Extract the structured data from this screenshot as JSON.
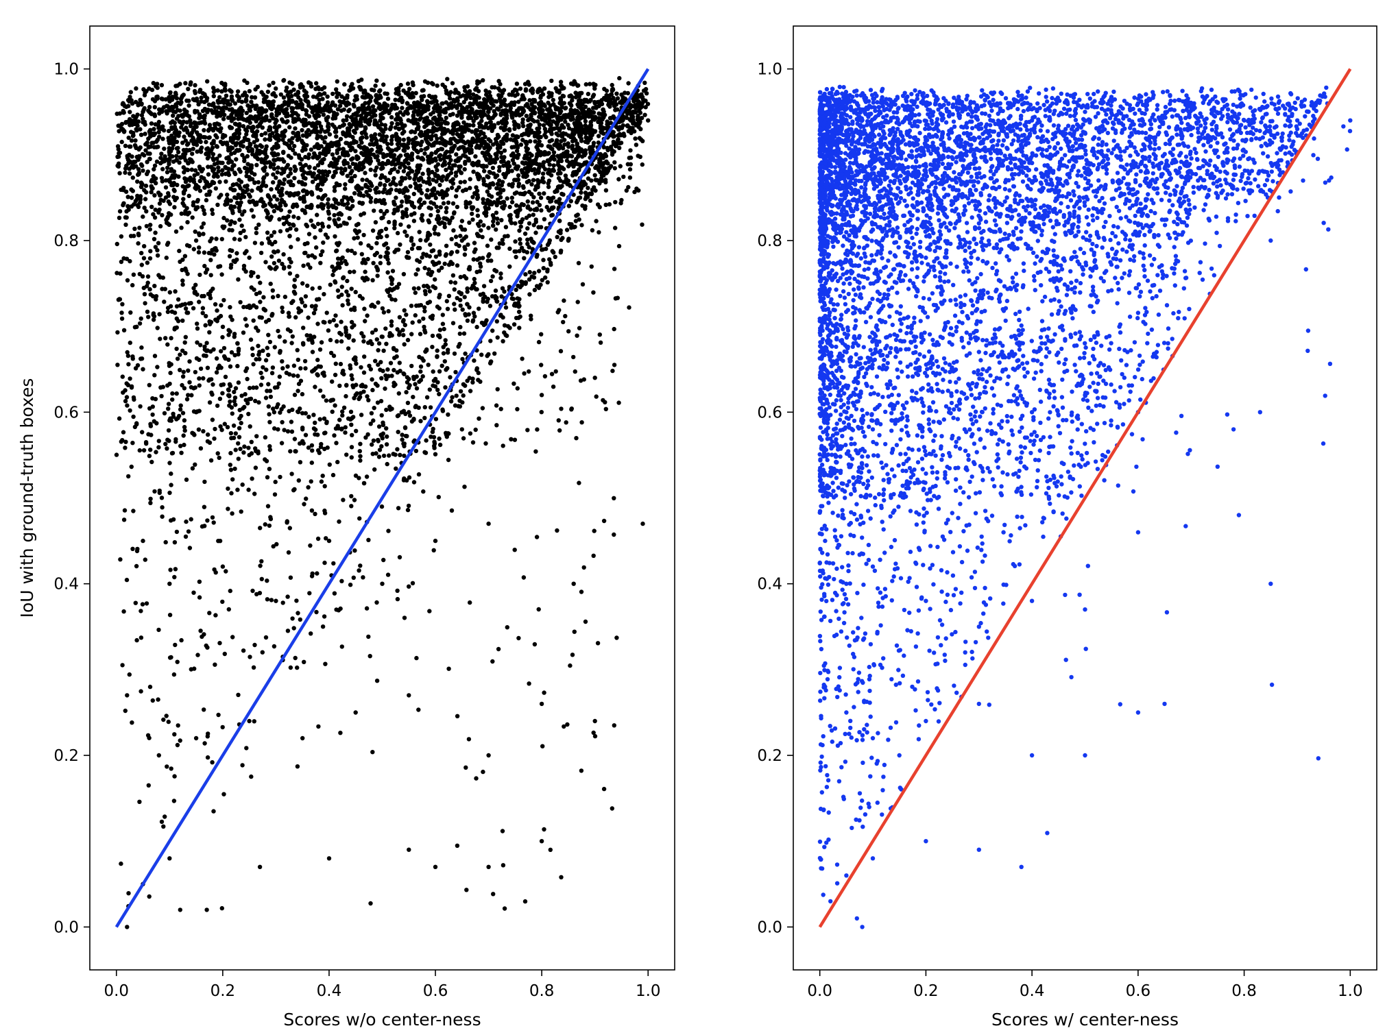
{
  "chart_data": [
    {
      "type": "scatter",
      "title": "",
      "xlabel": "Scores w/o center-ness",
      "ylabel": "IoU with ground-truth boxes",
      "xlim": [
        -0.05,
        1.05
      ],
      "ylim": [
        -0.05,
        1.05
      ],
      "x_ticks": [
        "0.0",
        "0.2",
        "0.4",
        "0.6",
        "0.8",
        "1.0"
      ],
      "y_ticks": [
        "0.0",
        "0.2",
        "0.4",
        "0.6",
        "0.8",
        "1.0"
      ],
      "grid": false,
      "point_color": "#000000",
      "approx_point_count": 6500,
      "reference_line": {
        "x": [
          0,
          1
        ],
        "y": [
          0,
          1
        ],
        "color": "#1a3ee8"
      },
      "sample_points": [
        [
          0.05,
          0.95
        ],
        [
          0.1,
          0.9
        ],
        [
          0.2,
          0.92
        ],
        [
          0.3,
          0.9
        ],
        [
          0.4,
          0.88
        ],
        [
          0.5,
          0.92
        ],
        [
          0.6,
          0.93
        ],
        [
          0.7,
          0.95
        ],
        [
          0.8,
          0.95
        ],
        [
          0.9,
          0.96
        ],
        [
          0.95,
          0.97
        ],
        [
          1.0,
          0.94
        ],
        [
          0.15,
          0.8
        ],
        [
          0.25,
          0.78
        ],
        [
          0.35,
          0.75
        ],
        [
          0.45,
          0.74
        ],
        [
          0.55,
          0.78
        ],
        [
          0.65,
          0.8
        ],
        [
          0.75,
          0.82
        ],
        [
          0.85,
          0.8
        ],
        [
          0.05,
          0.65
        ],
        [
          0.15,
          0.6
        ],
        [
          0.25,
          0.55
        ],
        [
          0.35,
          0.58
        ],
        [
          0.45,
          0.62
        ],
        [
          0.55,
          0.6
        ],
        [
          0.65,
          0.58
        ],
        [
          0.8,
          0.62
        ],
        [
          0.9,
          0.64
        ],
        [
          0.05,
          0.45
        ],
        [
          0.1,
          0.4
        ],
        [
          0.2,
          0.42
        ],
        [
          0.3,
          0.38
        ],
        [
          0.4,
          0.45
        ],
        [
          0.5,
          0.4
        ],
        [
          0.6,
          0.45
        ],
        [
          0.7,
          0.47
        ],
        [
          0.86,
          0.4
        ],
        [
          0.99,
          0.47
        ],
        [
          0.02,
          0.27
        ],
        [
          0.08,
          0.2
        ],
        [
          0.15,
          0.22
        ],
        [
          0.25,
          0.24
        ],
        [
          0.35,
          0.22
        ],
        [
          0.45,
          0.25
        ],
        [
          0.55,
          0.27
        ],
        [
          0.7,
          0.2
        ],
        [
          0.8,
          0.26
        ],
        [
          0.9,
          0.24
        ],
        [
          0.02,
          0.0
        ],
        [
          0.05,
          0.05
        ],
        [
          0.1,
          0.08
        ],
        [
          0.12,
          0.02
        ],
        [
          0.17,
          0.02
        ],
        [
          0.27,
          0.07
        ],
        [
          0.4,
          0.08
        ],
        [
          0.55,
          0.09
        ],
        [
          0.6,
          0.07
        ],
        [
          0.7,
          0.07
        ],
        [
          0.8,
          0.1
        ]
      ]
    },
    {
      "type": "scatter",
      "title": "",
      "xlabel": "Scores w/ center-ness",
      "ylabel": "",
      "xlim": [
        -0.05,
        1.05
      ],
      "ylim": [
        -0.05,
        1.05
      ],
      "x_ticks": [
        "0.0",
        "0.2",
        "0.4",
        "0.6",
        "0.8",
        "1.0"
      ],
      "y_ticks": [
        "0.0",
        "0.2",
        "0.4",
        "0.6",
        "0.8",
        "1.0"
      ],
      "grid": false,
      "point_color": "#1438f0",
      "approx_point_count": 6500,
      "reference_line": {
        "x": [
          0,
          1
        ],
        "y": [
          0,
          1
        ],
        "color": "#e8412e"
      },
      "sample_points": [
        [
          0.02,
          0.95
        ],
        [
          0.1,
          0.93
        ],
        [
          0.2,
          0.92
        ],
        [
          0.3,
          0.93
        ],
        [
          0.4,
          0.94
        ],
        [
          0.5,
          0.95
        ],
        [
          0.6,
          0.96
        ],
        [
          0.7,
          0.96
        ],
        [
          0.8,
          0.94
        ],
        [
          0.9,
          0.93
        ],
        [
          1.0,
          0.94
        ],
        [
          0.01,
          0.8
        ],
        [
          0.1,
          0.82
        ],
        [
          0.2,
          0.78
        ],
        [
          0.3,
          0.82
        ],
        [
          0.4,
          0.84
        ],
        [
          0.5,
          0.86
        ],
        [
          0.6,
          0.82
        ],
        [
          0.75,
          0.85
        ],
        [
          0.85,
          0.8
        ],
        [
          0.96,
          0.87
        ],
        [
          0.01,
          0.65
        ],
        [
          0.05,
          0.6
        ],
        [
          0.1,
          0.58
        ],
        [
          0.2,
          0.55
        ],
        [
          0.3,
          0.58
        ],
        [
          0.4,
          0.6
        ],
        [
          0.5,
          0.62
        ],
        [
          0.6,
          0.6
        ],
        [
          0.78,
          0.58
        ],
        [
          0.83,
          0.6
        ],
        [
          0.01,
          0.45
        ],
        [
          0.05,
          0.4
        ],
        [
          0.1,
          0.42
        ],
        [
          0.2,
          0.38
        ],
        [
          0.3,
          0.35
        ],
        [
          0.4,
          0.38
        ],
        [
          0.5,
          0.37
        ],
        [
          0.6,
          0.46
        ],
        [
          0.79,
          0.48
        ],
        [
          0.85,
          0.4
        ],
        [
          0.01,
          0.28
        ],
        [
          0.05,
          0.25
        ],
        [
          0.1,
          0.22
        ],
        [
          0.15,
          0.2
        ],
        [
          0.2,
          0.24
        ],
        [
          0.3,
          0.26
        ],
        [
          0.4,
          0.2
        ],
        [
          0.5,
          0.2
        ],
        [
          0.6,
          0.25
        ],
        [
          0.65,
          0.26
        ],
        [
          0.02,
          0.03
        ],
        [
          0.05,
          0.06
        ],
        [
          0.07,
          0.01
        ],
        [
          0.08,
          0.0
        ],
        [
          0.1,
          0.08
        ],
        [
          0.2,
          0.1
        ],
        [
          0.3,
          0.09
        ],
        [
          0.38,
          0.07
        ]
      ]
    }
  ]
}
